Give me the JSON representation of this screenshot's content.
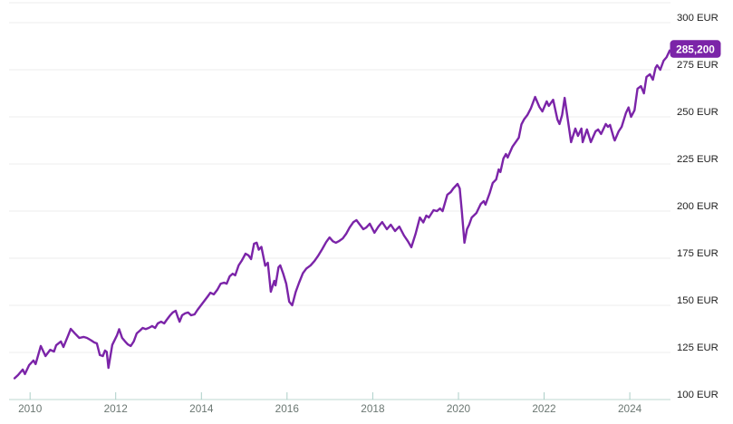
{
  "chart_data": {
    "type": "line",
    "title": "",
    "currency": "EUR",
    "grid": "horizontal",
    "legend": "none",
    "x_axis": {
      "range": [
        2009.51,
        2024.95
      ],
      "ticks": [
        2010,
        2012,
        2014,
        2016,
        2018,
        2020,
        2022,
        2024
      ],
      "labels": [
        "2010",
        "2012",
        "2014",
        "2016",
        "2018",
        "2020",
        "2022",
        "2024"
      ]
    },
    "y_axis": {
      "range": [
        100,
        300
      ],
      "ticks": [
        300,
        275,
        250,
        225,
        200,
        175,
        150,
        125,
        100
      ],
      "labels": [
        "300 EUR",
        "275 EUR",
        "250 EUR",
        "225 EUR",
        "200 EUR",
        "175 EUR",
        "150 EUR",
        "125 EUR",
        "100 EUR"
      ]
    },
    "last_value": {
      "label": "285,200",
      "value": 285.2
    },
    "series": [
      {
        "name": "portfolio-value-eur",
        "color": "#7b24a8",
        "points": [
          [
            2009.64,
            111.3
          ],
          [
            2009.72,
            113.0
          ],
          [
            2009.83,
            115.9
          ],
          [
            2009.88,
            113.5
          ],
          [
            2009.98,
            118.3
          ],
          [
            2010.08,
            120.7
          ],
          [
            2010.13,
            118.8
          ],
          [
            2010.25,
            128.4
          ],
          [
            2010.36,
            123.1
          ],
          [
            2010.47,
            126.4
          ],
          [
            2010.56,
            125.5
          ],
          [
            2010.61,
            128.8
          ],
          [
            2010.72,
            130.8
          ],
          [
            2010.78,
            127.9
          ],
          [
            2010.89,
            134.0
          ],
          [
            2010.95,
            137.5
          ],
          [
            2011.05,
            135.0
          ],
          [
            2011.15,
            132.7
          ],
          [
            2011.25,
            133.2
          ],
          [
            2011.33,
            132.7
          ],
          [
            2011.42,
            131.5
          ],
          [
            2011.5,
            130.3
          ],
          [
            2011.56,
            129.8
          ],
          [
            2011.63,
            123.6
          ],
          [
            2011.7,
            123.1
          ],
          [
            2011.75,
            126.0
          ],
          [
            2011.79,
            125.3
          ],
          [
            2011.83,
            116.8
          ],
          [
            2011.92,
            129.0
          ],
          [
            2012.03,
            134.1
          ],
          [
            2012.08,
            137.3
          ],
          [
            2012.15,
            132.7
          ],
          [
            2012.22,
            130.8
          ],
          [
            2012.28,
            129.3
          ],
          [
            2012.35,
            128.4
          ],
          [
            2012.42,
            130.8
          ],
          [
            2012.49,
            135.1
          ],
          [
            2012.56,
            136.5
          ],
          [
            2012.63,
            138.0
          ],
          [
            2012.7,
            137.4
          ],
          [
            2012.77,
            138.0
          ],
          [
            2012.85,
            139.0
          ],
          [
            2012.92,
            138.0
          ],
          [
            2012.98,
            140.4
          ],
          [
            2013.06,
            141.3
          ],
          [
            2013.13,
            140.4
          ],
          [
            2013.19,
            142.3
          ],
          [
            2013.27,
            144.7
          ],
          [
            2013.33,
            146.2
          ],
          [
            2013.4,
            147.1
          ],
          [
            2013.45,
            143.7
          ],
          [
            2013.49,
            141.3
          ],
          [
            2013.55,
            144.7
          ],
          [
            2013.62,
            145.7
          ],
          [
            2013.69,
            146.2
          ],
          [
            2013.76,
            144.7
          ],
          [
            2013.84,
            145.2
          ],
          [
            2013.91,
            147.6
          ],
          [
            2013.99,
            150.0
          ],
          [
            2014.07,
            152.4
          ],
          [
            2014.15,
            154.8
          ],
          [
            2014.21,
            156.7
          ],
          [
            2014.29,
            155.8
          ],
          [
            2014.37,
            158.2
          ],
          [
            2014.45,
            161.5
          ],
          [
            2014.53,
            162.0
          ],
          [
            2014.59,
            161.5
          ],
          [
            2014.66,
            165.4
          ],
          [
            2014.73,
            166.8
          ],
          [
            2014.79,
            165.9
          ],
          [
            2014.87,
            171.2
          ],
          [
            2014.94,
            173.6
          ],
          [
            2015.03,
            177.4
          ],
          [
            2015.1,
            176.5
          ],
          [
            2015.16,
            174.5
          ],
          [
            2015.23,
            182.7
          ],
          [
            2015.29,
            183.2
          ],
          [
            2015.34,
            179.5
          ],
          [
            2015.4,
            181.0
          ],
          [
            2015.49,
            171.0
          ],
          [
            2015.55,
            172.6
          ],
          [
            2015.62,
            157.2
          ],
          [
            2015.7,
            163.0
          ],
          [
            2015.73,
            160.6
          ],
          [
            2015.8,
            170.2
          ],
          [
            2015.84,
            171.2
          ],
          [
            2015.91,
            166.8
          ],
          [
            2015.98,
            161.5
          ],
          [
            2016.05,
            151.9
          ],
          [
            2016.12,
            150.0
          ],
          [
            2016.2,
            157.0
          ],
          [
            2016.28,
            162.0
          ],
          [
            2016.37,
            167.0
          ],
          [
            2016.45,
            169.5
          ],
          [
            2016.55,
            171.2
          ],
          [
            2016.64,
            173.5
          ],
          [
            2016.73,
            176.5
          ],
          [
            2016.82,
            179.8
          ],
          [
            2016.91,
            183.5
          ],
          [
            2016.99,
            186.0
          ],
          [
            2017.07,
            184.0
          ],
          [
            2017.14,
            183.2
          ],
          [
            2017.22,
            184.2
          ],
          [
            2017.3,
            185.5
          ],
          [
            2017.38,
            188.0
          ],
          [
            2017.46,
            191.3
          ],
          [
            2017.55,
            194.2
          ],
          [
            2017.62,
            195.2
          ],
          [
            2017.7,
            192.8
          ],
          [
            2017.78,
            190.4
          ],
          [
            2017.85,
            191.3
          ],
          [
            2017.93,
            193.3
          ],
          [
            2018.04,
            188.5
          ],
          [
            2018.13,
            191.8
          ],
          [
            2018.22,
            194.2
          ],
          [
            2018.33,
            190.4
          ],
          [
            2018.42,
            192.8
          ],
          [
            2018.52,
            189.4
          ],
          [
            2018.62,
            191.8
          ],
          [
            2018.73,
            187.0
          ],
          [
            2018.82,
            184.0
          ],
          [
            2018.9,
            180.8
          ],
          [
            2019.0,
            188.0
          ],
          [
            2019.1,
            196.6
          ],
          [
            2019.18,
            194.0
          ],
          [
            2019.25,
            197.6
          ],
          [
            2019.31,
            196.6
          ],
          [
            2019.42,
            200.5
          ],
          [
            2019.5,
            200.0
          ],
          [
            2019.57,
            201.4
          ],
          [
            2019.63,
            200.0
          ],
          [
            2019.74,
            208.7
          ],
          [
            2019.82,
            210.1
          ],
          [
            2019.88,
            212.0
          ],
          [
            2019.98,
            214.4
          ],
          [
            2020.03,
            212.0
          ],
          [
            2020.08,
            200.0
          ],
          [
            2020.14,
            183.2
          ],
          [
            2020.2,
            190.4
          ],
          [
            2020.25,
            192.8
          ],
          [
            2020.31,
            196.6
          ],
          [
            2020.42,
            199.0
          ],
          [
            2020.52,
            203.8
          ],
          [
            2020.59,
            205.3
          ],
          [
            2020.63,
            203.4
          ],
          [
            2020.73,
            209.6
          ],
          [
            2020.8,
            214.9
          ],
          [
            2020.88,
            216.8
          ],
          [
            2020.94,
            222.1
          ],
          [
            2020.98,
            220.7
          ],
          [
            2021.05,
            227.9
          ],
          [
            2021.11,
            230.3
          ],
          [
            2021.15,
            228.4
          ],
          [
            2021.26,
            234.1
          ],
          [
            2021.32,
            236.1
          ],
          [
            2021.41,
            239.0
          ],
          [
            2021.47,
            246.0
          ],
          [
            2021.53,
            248.6
          ],
          [
            2021.61,
            251.0
          ],
          [
            2021.69,
            254.5
          ],
          [
            2021.79,
            260.6
          ],
          [
            2021.89,
            255.3
          ],
          [
            2021.96,
            252.9
          ],
          [
            2022.06,
            258.2
          ],
          [
            2022.11,
            255.8
          ],
          [
            2022.21,
            259.1
          ],
          [
            2022.31,
            248.6
          ],
          [
            2022.36,
            246.2
          ],
          [
            2022.42,
            251.0
          ],
          [
            2022.48,
            260.1
          ],
          [
            2022.63,
            236.6
          ],
          [
            2022.73,
            243.8
          ],
          [
            2022.79,
            239.9
          ],
          [
            2022.87,
            243.8
          ],
          [
            2022.9,
            236.6
          ],
          [
            2023.0,
            243.3
          ],
          [
            2023.09,
            236.6
          ],
          [
            2023.2,
            242.3
          ],
          [
            2023.26,
            243.3
          ],
          [
            2023.33,
            240.9
          ],
          [
            2023.44,
            246.2
          ],
          [
            2023.49,
            244.7
          ],
          [
            2023.54,
            245.7
          ],
          [
            2023.63,
            238.5
          ],
          [
            2023.65,
            237.5
          ],
          [
            2023.74,
            242.3
          ],
          [
            2023.81,
            244.7
          ],
          [
            2023.91,
            252.0
          ],
          [
            2023.97,
            255.0
          ],
          [
            2024.03,
            250.0
          ],
          [
            2024.11,
            253.5
          ],
          [
            2024.18,
            264.9
          ],
          [
            2024.26,
            266.3
          ],
          [
            2024.33,
            262.5
          ],
          [
            2024.39,
            271.2
          ],
          [
            2024.47,
            272.6
          ],
          [
            2024.54,
            269.7
          ],
          [
            2024.6,
            276.0
          ],
          [
            2024.64,
            277.4
          ],
          [
            2024.71,
            275.0
          ],
          [
            2024.79,
            279.8
          ],
          [
            2024.86,
            281.7
          ],
          [
            2024.93,
            285.2
          ]
        ]
      }
    ]
  },
  "colors": {
    "accent_purple": "#7b24a8",
    "gridline": "#ececec",
    "axis_line": "#d3e5e0",
    "tick": "#accfc8",
    "x_label": "#6b7772",
    "y_label": "#1e1e1e",
    "badge_text": "#ffffff",
    "background": "#ffffff"
  }
}
